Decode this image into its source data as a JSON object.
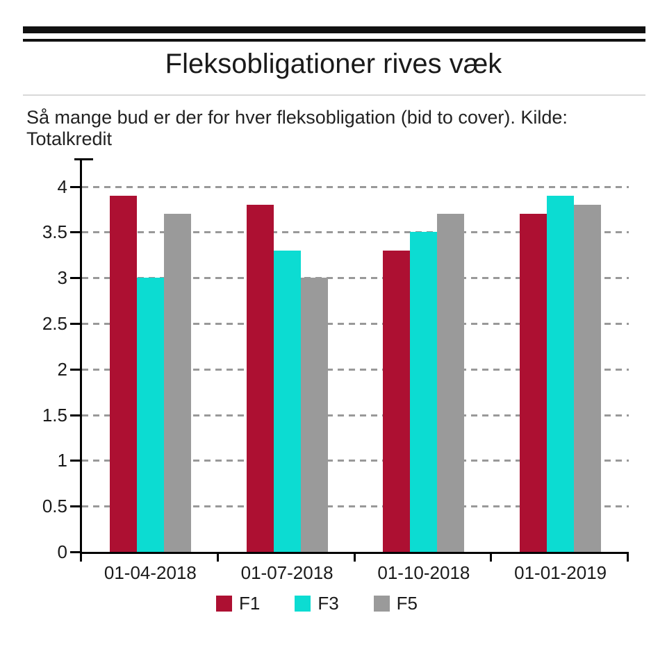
{
  "header": {
    "title": "Fleksobligationer rives væk",
    "subtitle": "Så mange bud er der for hver fleksobligation (bid to cover). Kilde: Totalkredit"
  },
  "colors": {
    "axis": "#000000",
    "gridline": "#999999",
    "header_rule": "#111111",
    "divider": "#d8d8d8",
    "title_text": "#1a1a1a",
    "body_text": "#222222"
  },
  "chart_data": {
    "type": "bar",
    "title": "Fleksobligationer rives væk",
    "subtitle": "Så mange bud er der for hver fleksobligation (bid to cover). Kilde: Totalkredit",
    "categories": [
      "01-04-2018",
      "01-07-2018",
      "01-10-2018",
      "01-01-2019"
    ],
    "series": [
      {
        "name": "F1",
        "color": "#AD1032",
        "values": [
          3.9,
          3.8,
          3.3,
          3.7
        ]
      },
      {
        "name": "F3",
        "color": "#0CDCD2",
        "values": [
          3.0,
          3.3,
          3.5,
          3.9
        ]
      },
      {
        "name": "F5",
        "color": "#9A9A9A",
        "values": [
          3.7,
          3.0,
          3.7,
          3.8
        ]
      }
    ],
    "xlabel": "",
    "ylabel": "",
    "ylim": [
      0,
      4.3
    ],
    "yticks": [
      0,
      0.5,
      1,
      1.5,
      2,
      2.5,
      3,
      3.5,
      4
    ],
    "ytick_labels": [
      "0",
      "0.5",
      "1",
      "1.5",
      "2",
      "2.5",
      "3",
      "3.5",
      "4"
    ],
    "grid": "horizontal-dashed",
    "legend_position": "bottom"
  }
}
